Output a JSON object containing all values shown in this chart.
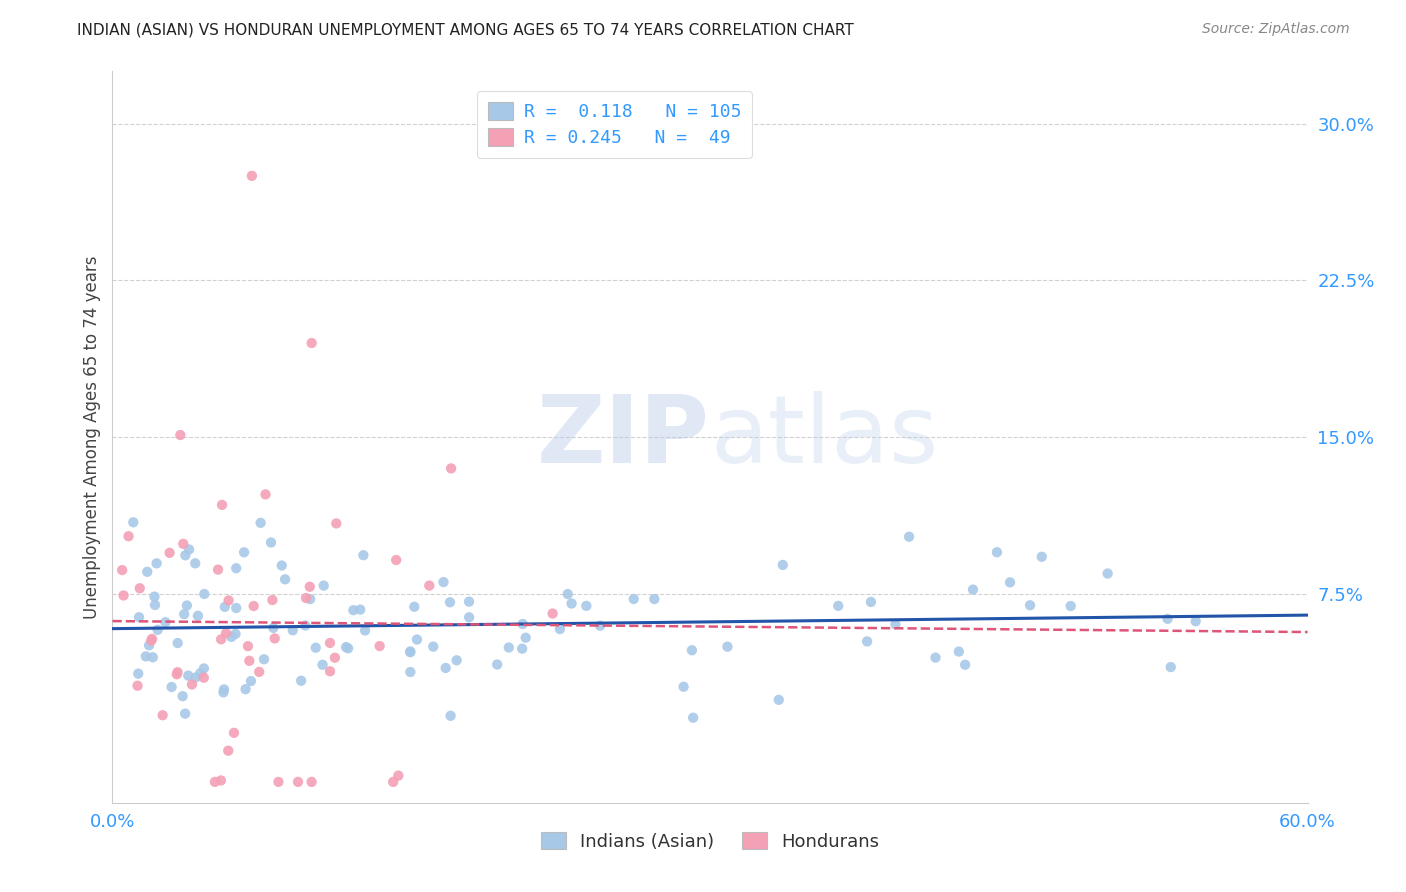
{
  "title": "INDIAN (ASIAN) VS HONDURAN UNEMPLOYMENT AMONG AGES 65 TO 74 YEARS CORRELATION CHART",
  "source": "Source: ZipAtlas.com",
  "ylabel": "Unemployment Among Ages 65 to 74 years",
  "xlim": [
    0.0,
    0.6
  ],
  "ylim": [
    -0.025,
    0.325
  ],
  "ytick_vals": [
    0.075,
    0.15,
    0.225,
    0.3
  ],
  "ytick_labels": [
    "7.5%",
    "15.0%",
    "22.5%",
    "30.0%"
  ],
  "xtick_vals": [
    0.0,
    0.1,
    0.2,
    0.3,
    0.4,
    0.5,
    0.6
  ],
  "xtick_labels": [
    "0.0%",
    "",
    "",
    "",
    "",
    "",
    "60.0%"
  ],
  "indian_R": 0.118,
  "indian_N": 105,
  "honduran_R": 0.245,
  "honduran_N": 49,
  "indian_color": "#a8c8e8",
  "honduran_color": "#f4a0b5",
  "indian_line_color": "#2255aa",
  "honduran_line_color": "#dd5577",
  "watermark_zip": "ZIP",
  "watermark_atlas": "atlas",
  "legend_label_indian": "Indians (Asian)",
  "legend_label_honduran": "Hondurans",
  "background_color": "#ffffff",
  "grid_color": "#cccccc",
  "title_color": "#222222",
  "axis_label_color": "#444444",
  "tick_color": "#3399ff",
  "source_color": "#888888",
  "legend_text_color": "#3399ff",
  "seed": 99
}
